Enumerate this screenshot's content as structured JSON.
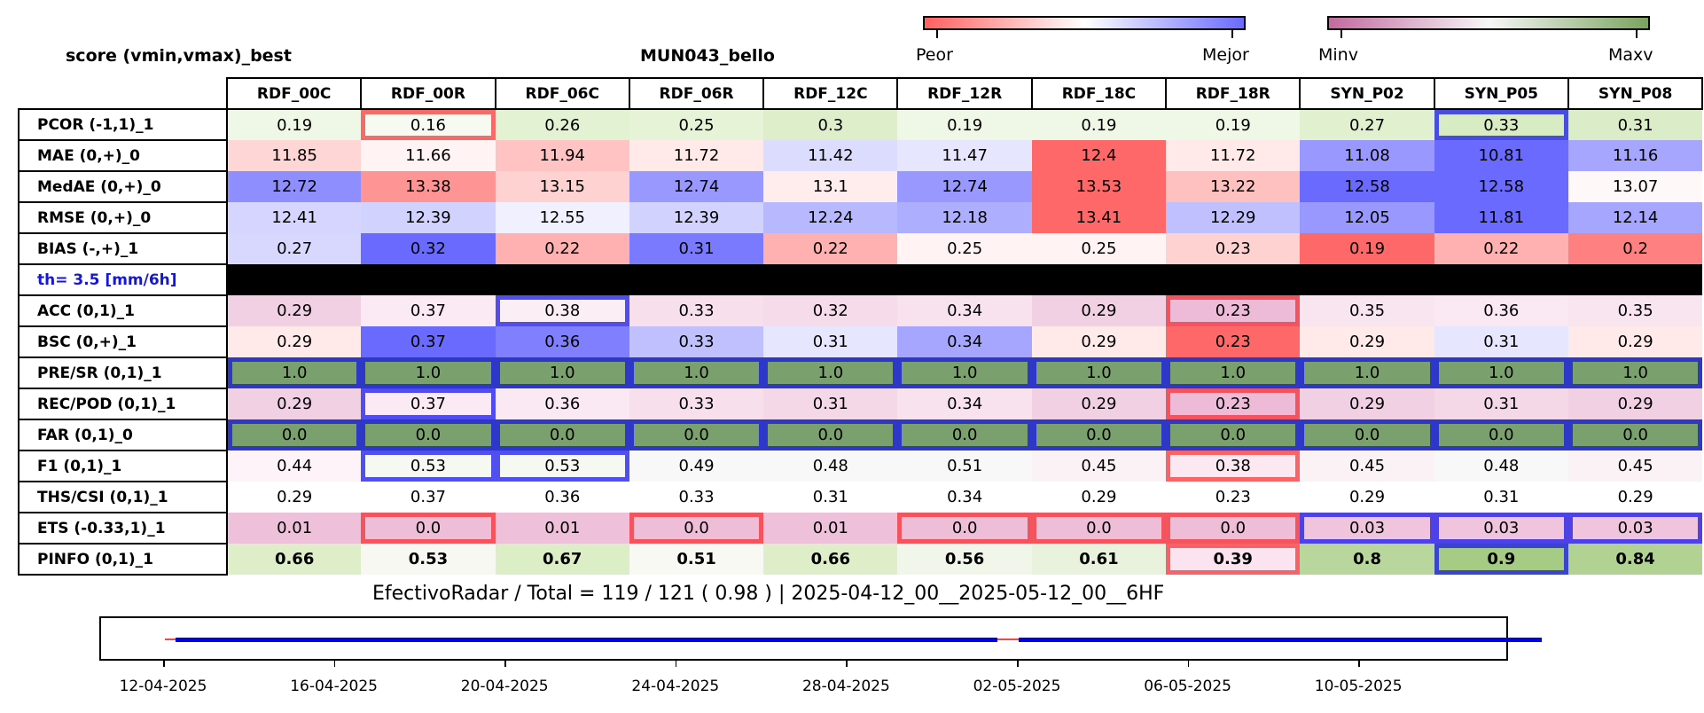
{
  "header": {
    "left_title": "score (vmin,vmax)_best",
    "center_title": "MUN043_bello"
  },
  "colorbar_score": {
    "low_label": "Peor",
    "high_label": "Mejor",
    "colors": [
      "#ff6060",
      "#ffffff",
      "#6a6aff"
    ]
  },
  "colorbar_v": {
    "low_label": "Minv",
    "high_label": "Maxv",
    "colors": [
      "#c3699f",
      "#f7f7f7",
      "#7aa35f"
    ]
  },
  "chart_data": {
    "type": "table",
    "columns": [
      "RDF_00C",
      "RDF_00R",
      "RDF_06C",
      "RDF_06R",
      "RDF_12C",
      "RDF_12R",
      "RDF_18C",
      "RDF_18R",
      "SYN_P02",
      "SYN_P05",
      "SYN_P08"
    ],
    "separator_label": "th= 3.5 [mm/6h]",
    "rows": [
      {
        "label": "PCOR (-1,1)_1",
        "values": [
          "0.19",
          "0.16",
          "0.26",
          "0.25",
          "0.3",
          "0.19",
          "0.19",
          "0.19",
          "0.27",
          "0.33",
          "0.31"
        ],
        "colors": [
          "#eff7e6",
          "#f7faf1",
          "#e3f2d2",
          "#e6f3d6",
          "#deeecb",
          "#eff7e6",
          "#eff7e6",
          "#eff7e6",
          "#e1f1cf",
          "#d8ecc4",
          "#dbedc8"
        ],
        "marks": [
          null,
          "r",
          null,
          null,
          null,
          null,
          null,
          null,
          null,
          "b",
          null
        ]
      },
      {
        "label": "MAE (0,+)_0",
        "values": [
          "11.85",
          "11.66",
          "11.94",
          "11.72",
          "11.42",
          "11.47",
          "12.4",
          "11.72",
          "11.08",
          "10.81",
          "11.16"
        ],
        "colors": [
          "#ffd6d6",
          "#fff3f3",
          "#ffc3c3",
          "#ffe9e9",
          "#dcdcff",
          "#e6e6ff",
          "#ff6868",
          "#ffe9e9",
          "#9898ff",
          "#6a6aff",
          "#a6a6ff"
        ]
      },
      {
        "label": "MedAE (0,+)_0",
        "values": [
          "12.72",
          "13.38",
          "13.15",
          "12.74",
          "13.1",
          "12.74",
          "13.53",
          "13.22",
          "12.58",
          "12.58",
          "13.07"
        ],
        "colors": [
          "#8e8eff",
          "#ff9494",
          "#ffd2d2",
          "#9898ff",
          "#ffecec",
          "#9898ff",
          "#ff6868",
          "#ffc0c0",
          "#6a6aff",
          "#6a6aff",
          "#fff8f8"
        ]
      },
      {
        "label": "RMSE (0,+)_0",
        "values": [
          "12.41",
          "12.39",
          "12.55",
          "12.39",
          "12.24",
          "12.18",
          "13.41",
          "12.29",
          "12.05",
          "11.81",
          "12.14"
        ],
        "colors": [
          "#d5d5ff",
          "#d2d2ff",
          "#f0f0ff",
          "#d2d2ff",
          "#b8b8ff",
          "#aeaeff",
          "#ff6868",
          "#c0c0ff",
          "#9898ff",
          "#6a6aff",
          "#a6a6ff"
        ]
      },
      {
        "label": "BIAS (-,+)_1",
        "values": [
          "0.27",
          "0.32",
          "0.22",
          "0.31",
          "0.22",
          "0.25",
          "0.25",
          "0.23",
          "0.19",
          "0.22",
          "0.2"
        ],
        "colors": [
          "#d8d8ff",
          "#6a6aff",
          "#ffb0b0",
          "#7a7aff",
          "#ffb0b0",
          "#fff3f3",
          "#fff3f3",
          "#ffd2d2",
          "#ff6868",
          "#ffb0b0",
          "#ff8080"
        ]
      },
      {
        "separator": true
      },
      {
        "label": "ACC (0,1)_1",
        "values": [
          "0.29",
          "0.37",
          "0.38",
          "0.33",
          "0.32",
          "0.34",
          "0.29",
          "0.23",
          "0.35",
          "0.36",
          "0.35"
        ],
        "colors": [
          "#f2d0e4",
          "#fbeaf3",
          "#fceef5",
          "#f7e0ec",
          "#f6dcea",
          "#f8e2ee",
          "#f2d0e4",
          "#edbbd8",
          "#f9e5f0",
          "#faE8f2",
          "#f9e5f0"
        ],
        "marks": [
          null,
          null,
          "b",
          null,
          null,
          null,
          null,
          "r",
          null,
          null,
          null
        ]
      },
      {
        "label": "BSC (0,+)_1",
        "values": [
          "0.29",
          "0.37",
          "0.36",
          "0.33",
          "0.31",
          "0.34",
          "0.29",
          "0.23",
          "0.29",
          "0.31",
          "0.29"
        ],
        "colors": [
          "#ffe9e9",
          "#6a6aff",
          "#8080ff",
          "#c0c0ff",
          "#e6e6ff",
          "#a6a6ff",
          "#ffe9e9",
          "#ff6868",
          "#ffe9e9",
          "#e6e6ff",
          "#ffe9e9"
        ]
      },
      {
        "label": "PRE/SR (0,1)_1",
        "values": [
          "1.0",
          "1.0",
          "1.0",
          "1.0",
          "1.0",
          "1.0",
          "1.0",
          "1.0",
          "1.0",
          "1.0",
          "1.0"
        ],
        "colors": [
          "#7aa06e",
          "#7aa06e",
          "#7aa06e",
          "#7aa06e",
          "#7aa06e",
          "#7aa06e",
          "#7aa06e",
          "#7aa06e",
          "#7aa06e",
          "#7aa06e",
          "#7aa06e"
        ],
        "marks": [
          "b",
          "b",
          "b",
          "b",
          "b",
          "b",
          "b",
          "b",
          "b",
          "b",
          "b"
        ]
      },
      {
        "label": "REC/POD (0,1)_1",
        "values": [
          "0.29",
          "0.37",
          "0.36",
          "0.33",
          "0.31",
          "0.34",
          "0.29",
          "0.23",
          "0.29",
          "0.31",
          "0.29"
        ],
        "colors": [
          "#f2d0e4",
          "#fbeaf3",
          "#fae8f2",
          "#f7e0ec",
          "#f5d8e8",
          "#f8e2ee",
          "#f2d0e4",
          "#edbbd8",
          "#f2d0e4",
          "#f5d8e8",
          "#f2d0e4"
        ],
        "marks": [
          null,
          "b",
          null,
          null,
          null,
          null,
          null,
          "r",
          null,
          null,
          null
        ]
      },
      {
        "label": "FAR (0,1)_0",
        "values": [
          "0.0",
          "0.0",
          "0.0",
          "0.0",
          "0.0",
          "0.0",
          "0.0",
          "0.0",
          "0.0",
          "0.0",
          "0.0"
        ],
        "colors": [
          "#7aa06e",
          "#7aa06e",
          "#7aa06e",
          "#7aa06e",
          "#7aa06e",
          "#7aa06e",
          "#7aa06e",
          "#7aa06e",
          "#7aa06e",
          "#7aa06e",
          "#7aa06e"
        ],
        "marks": [
          "b",
          "b",
          "b",
          "b",
          "b",
          "b",
          "b",
          "b",
          "b",
          "b",
          "b"
        ]
      },
      {
        "label": "F1 (0,1)_1",
        "values": [
          "0.44",
          "0.53",
          "0.53",
          "0.49",
          "0.48",
          "0.51",
          "0.45",
          "0.38",
          "0.45",
          "0.48",
          "0.45"
        ],
        "colors": [
          "#fdf3f8",
          "#f6f8f2",
          "#f6f8f2",
          "#f8f8f8",
          "#f8f8f8",
          "#f8f8f8",
          "#fbf2f6",
          "#fce8f1",
          "#fbf2f6",
          "#f8f8f8",
          "#fbf2f6"
        ],
        "marks": [
          null,
          "b",
          "b",
          null,
          null,
          null,
          null,
          "r",
          null,
          null,
          null
        ]
      },
      {
        "label": "THS/CSI (0,1)_1",
        "values": [
          "0.29",
          "0.37",
          "0.36",
          "0.33",
          "0.31",
          "0.34",
          "0.29",
          "0.23",
          "0.29",
          "0.31",
          "0.29"
        ],
        "colors": [
          "#ffffff",
          "#ffffff",
          "#ffffff",
          "#ffffff",
          "#ffffff",
          "#ffffff",
          "#ffffff",
          "#ffffff",
          "#ffffff",
          "#ffffff",
          "#ffffff"
        ]
      },
      {
        "label": "ETS (-0.33,1)_1",
        "values": [
          "0.01",
          "0.0",
          "0.01",
          "0.0",
          "0.01",
          "0.0",
          "0.0",
          "0.0",
          "0.03",
          "0.03",
          "0.03"
        ],
        "colors": [
          "#eec0da",
          "#eebdd8",
          "#eec0da",
          "#eebdd8",
          "#eec0da",
          "#eebdd8",
          "#eebdd8",
          "#eebdd8",
          "#efc4dc",
          "#efc4dc",
          "#efc4dc"
        ],
        "marks": [
          null,
          "r",
          null,
          "r",
          null,
          "r",
          "r",
          "r",
          "b",
          "b",
          "b"
        ]
      },
      {
        "label": "PINFO (0,1)_1",
        "values": [
          "0.66",
          "0.53",
          "0.67",
          "0.51",
          "0.66",
          "0.56",
          "0.61",
          "0.39",
          "0.8",
          "0.9",
          "0.84"
        ],
        "colors": [
          "#ddeec9",
          "#f6f8f1",
          "#dbeec6",
          "#f8f9f3",
          "#ddeec9",
          "#f1f6ea",
          "#e8f2dc",
          "#fbe3ef",
          "#b9d79c",
          "#a6cb85",
          "#b1d293"
        ],
        "marks": [
          null,
          null,
          null,
          null,
          null,
          null,
          null,
          "r",
          null,
          "b",
          null
        ],
        "bold": true
      }
    ],
    "footer": "EfectivoRadar / Total  =  119 / 121 ( 0.98 ) | 2025-04-12_00__2025-05-12_00__6HF",
    "timeline": {
      "x_ticks": [
        "12-04-2025",
        "16-04-2025",
        "20-04-2025",
        "24-04-2025",
        "28-04-2025",
        "02-05-2025",
        "06-05-2025",
        "10-05-2025"
      ],
      "x_range": [
        "2025-04-12",
        "2025-05-15"
      ],
      "segments": [
        {
          "from": "2025-04-12 06:00",
          "to": "2025-05-01 12:00",
          "color": "#0000ee"
        },
        {
          "from": "2025-05-02 00:00",
          "to": "2025-05-14 06:00",
          "color": "#0000ee"
        }
      ],
      "gaps": [
        {
          "from": "2025-04-12 00:00",
          "to": "2025-04-12 06:00",
          "color": "#ff4444"
        },
        {
          "from": "2025-05-01 12:00",
          "to": "2025-05-02 00:00",
          "color": "#ff4444"
        }
      ]
    }
  }
}
